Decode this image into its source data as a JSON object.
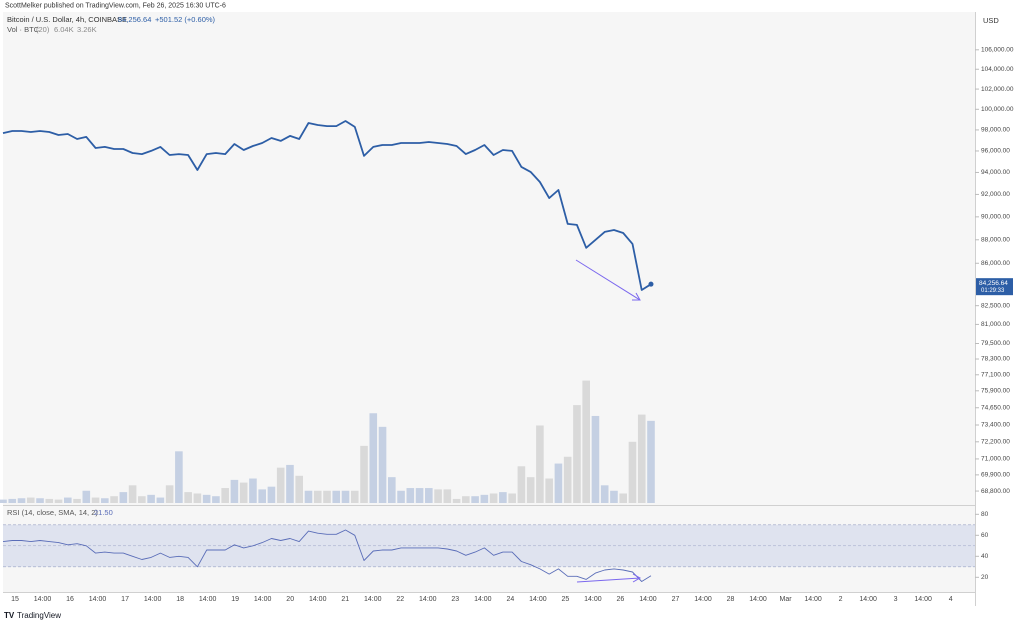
{
  "header": "ScottMelker published on TradingView.com, Feb 26, 2025 16:30 UTC-6",
  "footer": "TradingView",
  "currency": "USD",
  "x_axis": {
    "labels": [
      "15",
      "14:00",
      "16",
      "14:00",
      "17",
      "14:00",
      "18",
      "14:00",
      "19",
      "14:00",
      "20",
      "14:00",
      "21",
      "14:00",
      "22",
      "14:00",
      "23",
      "14:00",
      "24",
      "14:00",
      "25",
      "14:00",
      "26",
      "14:00",
      "27",
      "14:00",
      "28",
      "14:00",
      "Mar",
      "14:00",
      "2",
      "14:00",
      "3",
      "14:00",
      "4"
    ]
  },
  "chart_data": [
    {
      "type": "line",
      "title": "Bitcoin / U.S. Dollar, 4h, COINBASE",
      "last_label": "84,256.64",
      "change": "+501.52 (+0.60%)",
      "countdown": "01:29:33",
      "color": "#2d5ea6",
      "log_scale": true,
      "ylim": [
        68000,
        110000
      ],
      "yticks": [
        {
          "value": 106000,
          "label": "106,000.00"
        },
        {
          "value": 104000,
          "label": "104,000.00"
        },
        {
          "value": 102000,
          "label": "102,000.00"
        },
        {
          "value": 100000,
          "label": "100,000.00"
        },
        {
          "value": 98000,
          "label": "98,000.00"
        },
        {
          "value": 96000,
          "label": "96,000.00"
        },
        {
          "value": 94000,
          "label": "94,000.00"
        },
        {
          "value": 92000,
          "label": "92,000.00"
        },
        {
          "value": 90000,
          "label": "90,000.00"
        },
        {
          "value": 88000,
          "label": "88,000.00"
        },
        {
          "value": 86000,
          "label": "86,000.00"
        },
        {
          "value": 82500,
          "label": "82,500.00"
        },
        {
          "value": 81000,
          "label": "81,000.00"
        },
        {
          "value": 79500,
          "label": "79,500.00"
        },
        {
          "value": 78300,
          "label": "78,300.00"
        },
        {
          "value": 77100,
          "label": "77,100.00"
        },
        {
          "value": 75900,
          "label": "75,900.00"
        },
        {
          "value": 74650,
          "label": "74,650.00"
        },
        {
          "value": 73400,
          "label": "73,400.00"
        },
        {
          "value": 72200,
          "label": "72,200.00"
        },
        {
          "value": 71000,
          "label": "71,000.00"
        },
        {
          "value": 69900,
          "label": "69,900.00"
        },
        {
          "value": 68800,
          "label": "68,800.00"
        }
      ],
      "values": [
        97700,
        97900,
        97900,
        97800,
        97900,
        97800,
        97510,
        97610,
        97130,
        97330,
        96280,
        96380,
        96190,
        96190,
        95810,
        95710,
        96010,
        96380,
        95620,
        95710,
        95620,
        94230,
        95710,
        95810,
        95710,
        96660,
        96090,
        96470,
        96750,
        97230,
        96950,
        97430,
        97130,
        98670,
        98470,
        98370,
        98370,
        98860,
        98290,
        95540,
        96380,
        96560,
        96560,
        96750,
        96750,
        96750,
        96850,
        96750,
        96660,
        96470,
        95710,
        96090,
        96560,
        95620,
        96090,
        96010,
        94510,
        94050,
        93130,
        91670,
        92400,
        89380,
        89290,
        87310,
        87990,
        88680,
        88850,
        88590,
        87650,
        83780,
        84256.64
      ]
    },
    {
      "type": "bar",
      "title": "Vol · BTC",
      "params": "(20)",
      "last_label": "6.04K",
      "ma_label": "3.26K",
      "colors": {
        "up": "#c5d0e3",
        "down": "#d9d9d9"
      },
      "values": [
        250,
        300,
        350,
        400,
        350,
        300,
        250,
        400,
        300,
        900,
        400,
        350,
        500,
        800,
        1300,
        500,
        600,
        400,
        1300,
        3800,
        800,
        700,
        600,
        500,
        1100,
        1700,
        1500,
        1800,
        1000,
        1200,
        2600,
        2800,
        2000,
        900,
        900,
        900,
        900,
        900,
        900,
        4200,
        6600,
        5600,
        1900,
        900,
        1100,
        1100,
        1100,
        1000,
        1000,
        300,
        500,
        500,
        600,
        700,
        800,
        700,
        2700,
        1900,
        5700,
        1800,
        2900,
        3400,
        7200,
        9000,
        6400,
        1300,
        900,
        700,
        4500,
        6500,
        6040
      ]
    },
    {
      "type": "line",
      "title": "RSI (14, close, SMA, 14, 2)",
      "last_label": "21.50",
      "color": "#5a6db8",
      "ylim": [
        6,
        86
      ],
      "yticks": [
        80,
        60,
        40,
        20
      ],
      "band": [
        30,
        70
      ],
      "midline": 50,
      "values": [
        54,
        55,
        55,
        54,
        55,
        54,
        53,
        51,
        52,
        50,
        43,
        44,
        43,
        43,
        40,
        37,
        39,
        43,
        39,
        40,
        39,
        30,
        46,
        46,
        46,
        51,
        48,
        50,
        53,
        57,
        55,
        57,
        54,
        64,
        62,
        61,
        61,
        65,
        60,
        36,
        45,
        46,
        46,
        48,
        48,
        48,
        48,
        48,
        47,
        45,
        41,
        44,
        48,
        41,
        44,
        44,
        35,
        32,
        28,
        23,
        28,
        21,
        21,
        18,
        24,
        27,
        28,
        27,
        25,
        16,
        21.5
      ]
    }
  ]
}
